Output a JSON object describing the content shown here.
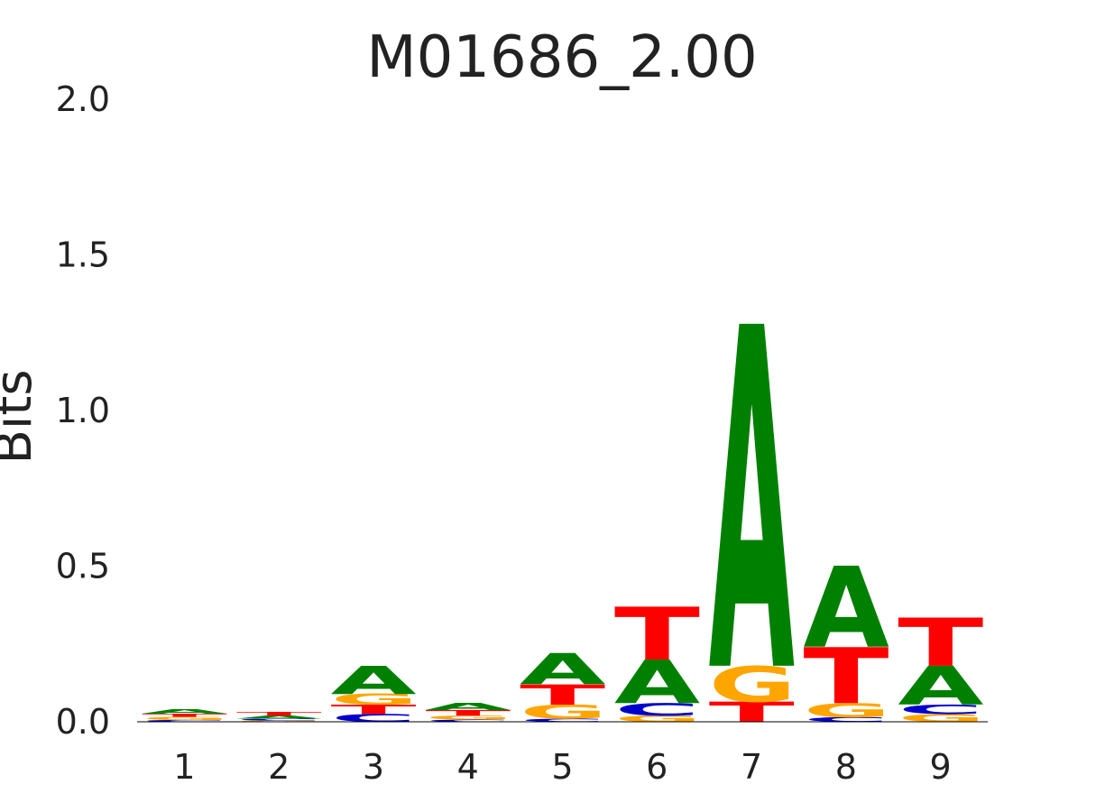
{
  "chart_data": {
    "type": "sequence-logo",
    "title": "M01686_2.00",
    "ylabel": "Bits",
    "xlabel": "",
    "ylim": [
      0,
      2.0
    ],
    "yticks": [
      "0.0",
      "0.5",
      "1.0",
      "1.5",
      "2.0"
    ],
    "positions": [
      "1",
      "2",
      "3",
      "4",
      "5",
      "6",
      "7",
      "8",
      "9"
    ],
    "colors": {
      "A": "#008000",
      "C": "#0000cc",
      "G": "#ffa500",
      "T": "#ff0000"
    },
    "stacks": [
      [
        {
          "base": "C",
          "bits": 0.006
        },
        {
          "base": "G",
          "bits": 0.01
        },
        {
          "base": "T",
          "bits": 0.01
        },
        {
          "base": "A",
          "bits": 0.014
        }
      ],
      [
        {
          "base": "G",
          "bits": 0.004
        },
        {
          "base": "C",
          "bits": 0.006
        },
        {
          "base": "A",
          "bits": 0.01
        },
        {
          "base": "T",
          "bits": 0.012
        }
      ],
      [
        {
          "base": "C",
          "bits": 0.025
        },
        {
          "base": "T",
          "bits": 0.03
        },
        {
          "base": "G",
          "bits": 0.035
        },
        {
          "base": "A",
          "bits": 0.09
        }
      ],
      [
        {
          "base": "C",
          "bits": 0.007
        },
        {
          "base": "G",
          "bits": 0.013
        },
        {
          "base": "T",
          "bits": 0.018
        },
        {
          "base": "A",
          "bits": 0.022
        }
      ],
      [
        {
          "base": "C",
          "bits": 0.01
        },
        {
          "base": "G",
          "bits": 0.045
        },
        {
          "base": "T",
          "bits": 0.065
        },
        {
          "base": "A",
          "bits": 0.1
        }
      ],
      [
        {
          "base": "G",
          "bits": 0.02
        },
        {
          "base": "C",
          "bits": 0.04
        },
        {
          "base": "A",
          "bits": 0.14
        },
        {
          "base": "T",
          "bits": 0.17
        }
      ],
      [
        {
          "base": "T",
          "bits": 0.065
        },
        {
          "base": "G",
          "bits": 0.115
        },
        {
          "base": "A",
          "bits": 1.1
        }
      ],
      [
        {
          "base": "C",
          "bits": 0.015
        },
        {
          "base": "G",
          "bits": 0.045
        },
        {
          "base": "T",
          "bits": 0.18
        },
        {
          "base": "A",
          "bits": 0.26
        }
      ],
      [
        {
          "base": "G",
          "bits": 0.025
        },
        {
          "base": "C",
          "bits": 0.03
        },
        {
          "base": "A",
          "bits": 0.125
        },
        {
          "base": "T",
          "bits": 0.155
        }
      ]
    ]
  }
}
